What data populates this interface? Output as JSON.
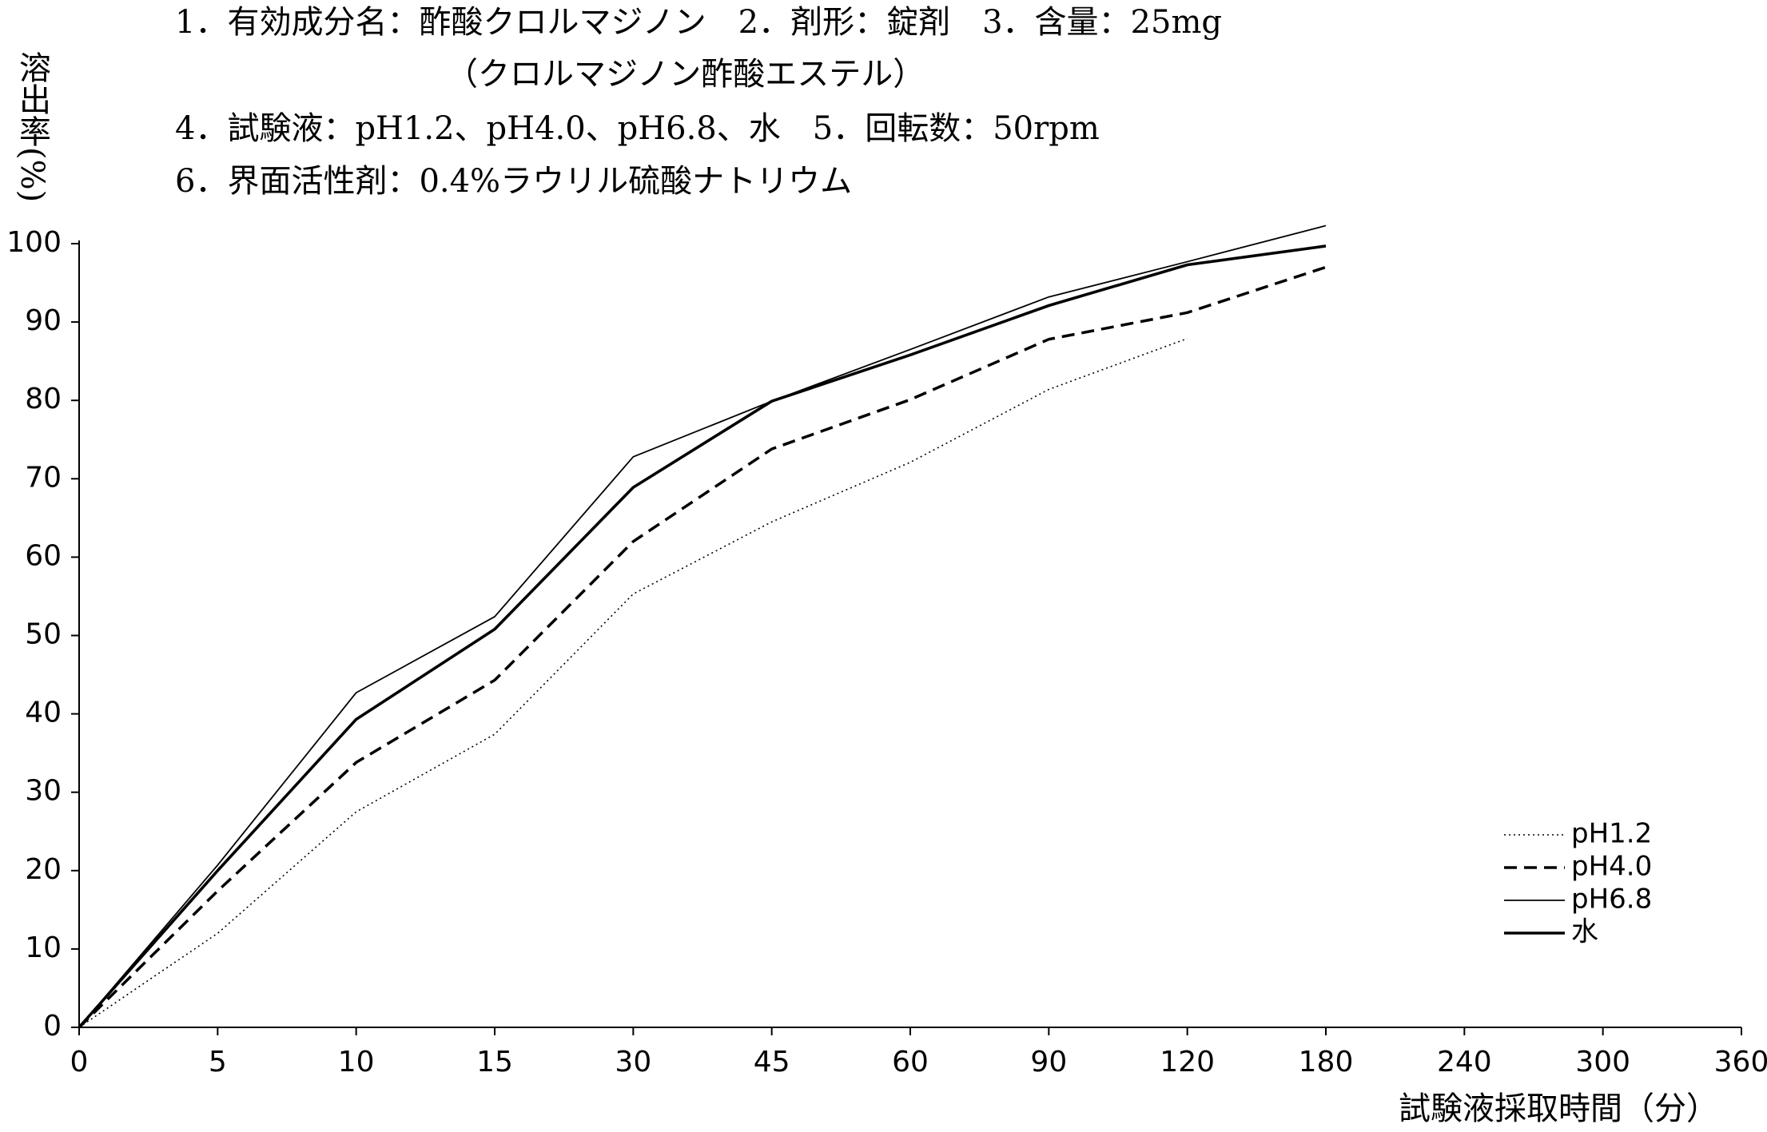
{
  "chart_data": {
    "type": "line",
    "annotations": [
      "1．有効成分名：酢酸クロルマジノン　2．剤形：錠剤　3．含量：25mg",
      "（クロルマジノン酢酸エステル）",
      "4．試験液：pH1.2、pH4.0、pH6.8、水　5．回転数：50rpm",
      "6．界面活性剤：0.4%ラウリル硫酸ナトリウム"
    ],
    "y_label": "溶出率(%)",
    "x_label": "試験液採取時間（分）",
    "categories": [
      "0",
      "5",
      "10",
      "15",
      "30",
      "45",
      "60",
      "90",
      "120",
      "180",
      "240",
      "300",
      "360"
    ],
    "series": [
      {
        "name": "pH1.2",
        "color": "#000000",
        "style": "dotted",
        "values": [
          0,
          12,
          27.5,
          37.4,
          55.3,
          64.5,
          72.1,
          81.4,
          87.9,
          null,
          null,
          null,
          null
        ]
      },
      {
        "name": "pH4.0",
        "color": "#000000",
        "style": "dashed",
        "values": [
          0,
          17.4,
          33.8,
          44.3,
          62,
          73.8,
          80.1,
          87.8,
          91.2,
          97,
          null,
          null,
          null
        ]
      },
      {
        "name": "pH6.8",
        "color": "#000000",
        "style": "thin",
        "values": [
          0,
          20.7,
          42.7,
          52.4,
          72.8,
          79.9,
          86.5,
          93.2,
          97.7,
          102.3,
          null,
          null,
          null
        ]
      },
      {
        "name": "水",
        "color": "#000000",
        "style": "thick",
        "values": [
          0,
          20,
          39.3,
          50.8,
          68.9,
          79.9,
          85.8,
          92.1,
          97.3,
          99.7,
          null,
          null,
          null
        ]
      }
    ],
    "ylim": [
      0,
      100
    ],
    "yticks": [
      0,
      10,
      20,
      30,
      40,
      50,
      60,
      70,
      80,
      90,
      100
    ],
    "grid": false,
    "legend": "lower right"
  }
}
